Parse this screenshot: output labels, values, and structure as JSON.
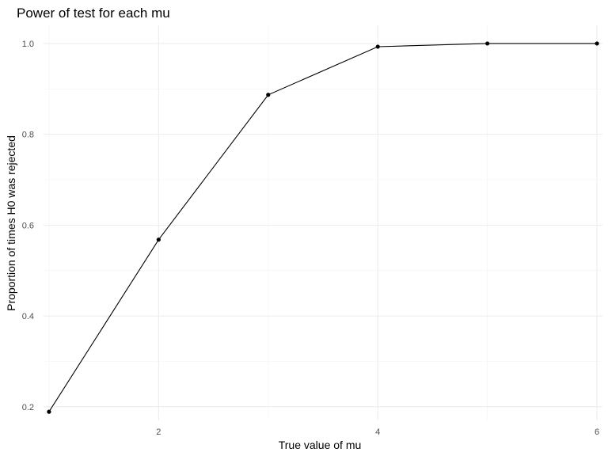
{
  "chart_data": {
    "type": "line",
    "title": "Power of test for each mu",
    "xlabel": "True value of mu",
    "ylabel": "Proportion of times H0 was rejected",
    "x": [
      1,
      2,
      3,
      4,
      5,
      6
    ],
    "series": [
      {
        "values": [
          0.189,
          0.568,
          0.887,
          0.993,
          1.0,
          1.0
        ]
      }
    ],
    "xlim": [
      0.95,
      6.05
    ],
    "ylim": [
      0.17,
      1.04
    ],
    "x_ticks": [
      2,
      4,
      6
    ],
    "x_tick_labels": [
      "2",
      "4",
      "6"
    ],
    "x_minor_ticks": [
      1,
      3,
      5
    ],
    "y_ticks": [
      0.2,
      0.4,
      0.6,
      0.8,
      1.0
    ],
    "y_tick_labels": [
      "0.2",
      "0.4",
      "0.6",
      "0.8",
      "1.0"
    ],
    "y_minor_ticks": [
      0.3,
      0.5,
      0.7,
      0.9
    ],
    "grid": true,
    "legend": "none",
    "line_color": "#000000",
    "point_color": "#000000",
    "grid_color": "#ebebeb"
  }
}
